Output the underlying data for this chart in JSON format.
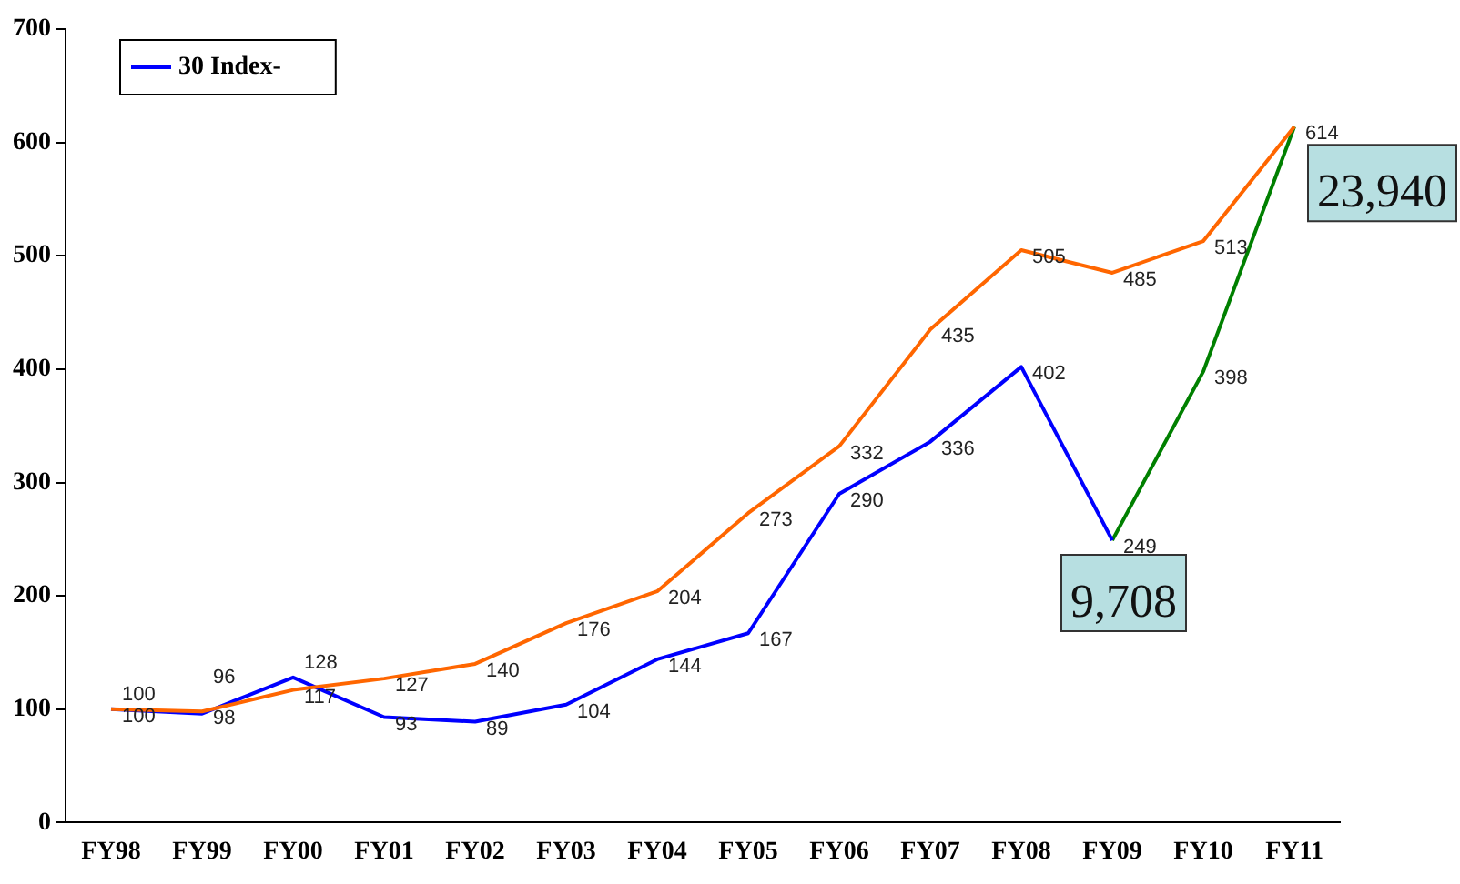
{
  "chart_data": {
    "type": "line",
    "categories": [
      "FY98",
      "FY99",
      "FY00",
      "FY01",
      "FY02",
      "FY03",
      "FY04",
      "FY05",
      "FY06",
      "FY07",
      "FY08",
      "FY09",
      "FY10",
      "FY11"
    ],
    "series": [
      {
        "color": "#ff6600",
        "values": [
          100,
          98,
          117,
          127,
          140,
          176,
          204,
          273,
          332,
          435,
          505,
          485,
          513,
          614
        ],
        "value_labels": [
          "100",
          "98",
          "117",
          "127",
          "140",
          "176",
          "204",
          "273",
          "332",
          "435",
          "505",
          "485",
          "513",
          "614"
        ]
      },
      {
        "name": "30 Index-",
        "color": "#0000ff",
        "values": [
          100,
          96,
          128,
          93,
          89,
          104,
          144,
          167,
          290,
          336,
          402,
          249,
          null,
          null
        ],
        "value_labels": [
          "100",
          "96",
          "128",
          "93",
          "89",
          "104",
          "144",
          "167",
          "290",
          "336",
          "402",
          "249",
          null,
          null
        ]
      },
      {
        "color": "#008000",
        "values": [
          null,
          null,
          null,
          null,
          null,
          null,
          null,
          null,
          null,
          null,
          null,
          249,
          398,
          614
        ],
        "value_labels": [
          null,
          null,
          null,
          null,
          null,
          null,
          null,
          null,
          null,
          null,
          null,
          null,
          "398",
          null
        ]
      }
    ],
    "ylim": [
      0,
      700
    ],
    "yticks": [
      0,
      100,
      200,
      300,
      400,
      500,
      600,
      700
    ],
    "grid": false,
    "legend": "top left",
    "marker": "none",
    "annotations": [
      {
        "text": "9,708",
        "x": "FY09",
        "y": 249
      },
      {
        "text": "23,940",
        "x": "FY11",
        "y": 614
      }
    ]
  }
}
